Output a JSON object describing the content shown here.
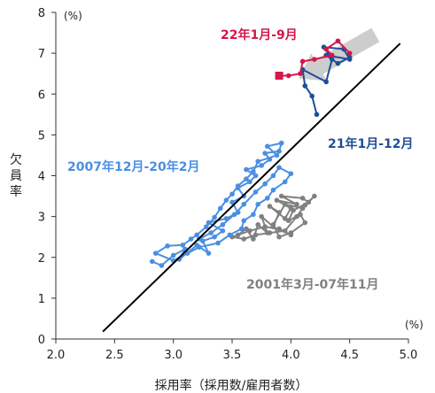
{
  "chart_data": {
    "type": "scatter",
    "title": "",
    "xlabel": "採用率（採用数/雇用者数）",
    "ylabel": "欠員率",
    "x_unit": "(%)",
    "y_unit": "(%)",
    "xlim": [
      2.0,
      5.0
    ],
    "ylim": [
      0,
      8
    ],
    "xticks": [
      "2.0",
      "2.5",
      "3.0",
      "3.5",
      "4.0",
      "4.5",
      "5.0"
    ],
    "yticks": [
      "0",
      "1",
      "2",
      "3",
      "4",
      "5",
      "6",
      "7",
      "8"
    ],
    "grid": false,
    "regression_line": {
      "x": [
        2.4,
        4.93
      ],
      "y": [
        0.18,
        7.24
      ],
      "color": "#000000"
    },
    "arrow": {
      "x1": 4.72,
      "y1": 7.45,
      "x2": 4.07,
      "y2": 6.38,
      "color": "#c8c8c8"
    },
    "series": [
      {
        "name": "2001年3月-07年11月",
        "color": "#808080",
        "points": [
          [
            3.55,
            2.55
          ],
          [
            3.62,
            2.7
          ],
          [
            3.68,
            2.45
          ],
          [
            3.72,
            2.8
          ],
          [
            3.8,
            2.6
          ],
          [
            3.75,
            3.0
          ],
          [
            3.85,
            2.75
          ],
          [
            3.9,
            3.1
          ],
          [
            3.82,
            3.25
          ],
          [
            3.95,
            2.95
          ],
          [
            4.0,
            3.2
          ],
          [
            3.88,
            3.4
          ],
          [
            4.05,
            3.3
          ],
          [
            3.92,
            3.5
          ],
          [
            4.1,
            3.45
          ],
          [
            4.15,
            3.35
          ],
          [
            4.02,
            3.15
          ],
          [
            3.98,
            2.9
          ],
          [
            4.08,
            3.05
          ],
          [
            4.12,
            2.85
          ],
          [
            4.0,
            2.6
          ],
          [
            3.9,
            2.5
          ],
          [
            3.85,
            2.8
          ],
          [
            3.95,
            3.3
          ],
          [
            4.1,
            3.2
          ],
          [
            4.2,
            3.5
          ],
          [
            4.12,
            3.28
          ],
          [
            4.05,
            3.0
          ],
          [
            3.95,
            2.65
          ],
          [
            3.82,
            2.6
          ],
          [
            3.7,
            2.55
          ],
          [
            3.6,
            2.45
          ],
          [
            3.5,
            2.5
          ],
          [
            3.65,
            2.65
          ],
          [
            3.78,
            2.75
          ],
          [
            3.9,
            2.7
          ],
          [
            4.0,
            2.55
          ]
        ]
      },
      {
        "name": "2007年12月-20年2月",
        "color": "#4a8fe2",
        "points": [
          [
            2.82,
            1.9
          ],
          [
            2.9,
            1.8
          ],
          [
            3.0,
            2.05
          ],
          [
            3.1,
            2.2
          ],
          [
            3.05,
            1.95
          ],
          [
            3.2,
            2.3
          ],
          [
            3.3,
            2.1
          ],
          [
            3.25,
            2.4
          ],
          [
            3.35,
            2.5
          ],
          [
            3.42,
            2.65
          ],
          [
            3.3,
            2.85
          ],
          [
            3.45,
            2.95
          ],
          [
            3.55,
            3.1
          ],
          [
            3.5,
            3.35
          ],
          [
            3.6,
            3.5
          ],
          [
            3.55,
            3.7
          ],
          [
            3.65,
            3.85
          ],
          [
            3.7,
            4.0
          ],
          [
            3.62,
            4.15
          ],
          [
            3.75,
            4.25
          ],
          [
            3.82,
            4.4
          ],
          [
            3.78,
            4.55
          ],
          [
            3.9,
            4.6
          ],
          [
            3.92,
            4.8
          ],
          [
            3.8,
            4.72
          ],
          [
            3.88,
            4.5
          ],
          [
            3.72,
            4.35
          ],
          [
            3.68,
            4.1
          ],
          [
            3.62,
            3.92
          ],
          [
            3.55,
            3.75
          ],
          [
            3.5,
            3.55
          ],
          [
            3.45,
            3.4
          ],
          [
            3.4,
            3.2
          ],
          [
            3.35,
            2.98
          ],
          [
            3.28,
            2.75
          ],
          [
            3.2,
            2.55
          ],
          [
            3.15,
            2.45
          ],
          [
            3.08,
            2.3
          ],
          [
            2.95,
            2.28
          ],
          [
            2.85,
            2.1
          ],
          [
            3.0,
            1.92
          ],
          [
            3.12,
            2.1
          ],
          [
            3.22,
            2.25
          ],
          [
            3.38,
            2.35
          ],
          [
            3.48,
            2.55
          ],
          [
            3.58,
            2.7
          ],
          [
            3.6,
            2.9
          ],
          [
            3.68,
            3.05
          ],
          [
            3.72,
            3.3
          ],
          [
            3.8,
            3.45
          ],
          [
            3.85,
            3.65
          ],
          [
            3.95,
            3.85
          ],
          [
            4.0,
            4.05
          ],
          [
            3.9,
            4.2
          ],
          [
            3.85,
            4.0
          ],
          [
            3.78,
            3.8
          ],
          [
            3.7,
            3.6
          ],
          [
            3.6,
            3.3
          ],
          [
            3.52,
            3.05
          ],
          [
            3.42,
            2.8
          ],
          [
            3.32,
            2.6
          ],
          [
            3.22,
            2.45
          ]
        ]
      },
      {
        "name": "21年1月-12月",
        "color": "#1f4e96",
        "points": [
          [
            4.22,
            5.5
          ],
          [
            4.18,
            5.95
          ],
          [
            4.12,
            6.2
          ],
          [
            4.1,
            6.6
          ],
          [
            4.3,
            6.3
          ],
          [
            4.35,
            6.85
          ],
          [
            4.28,
            7.15
          ],
          [
            4.45,
            7.1
          ],
          [
            4.5,
            6.85
          ],
          [
            4.3,
            6.95
          ],
          [
            4.4,
            6.75
          ],
          [
            4.5,
            6.9
          ]
        ]
      },
      {
        "name": "22年1月-9月",
        "color": "#d6164a",
        "points": [
          [
            4.5,
            7.0
          ],
          [
            4.4,
            7.3
          ],
          [
            4.3,
            7.1
          ],
          [
            4.35,
            6.95
          ],
          [
            4.2,
            6.85
          ],
          [
            4.1,
            6.8
          ],
          [
            4.08,
            6.5
          ],
          [
            3.98,
            6.45
          ],
          [
            3.9,
            6.45
          ]
        ],
        "end_marker": "square"
      }
    ],
    "annotations": [
      {
        "text": "22年1月-9月",
        "color": "#d6164a"
      },
      {
        "text": "21年1月-12月",
        "color": "#1f4e96"
      },
      {
        "text": "2007年12月-20年2月",
        "color": "#4a8fe2"
      },
      {
        "text": "2001年3月-07年11月",
        "color": "#808080"
      }
    ]
  }
}
